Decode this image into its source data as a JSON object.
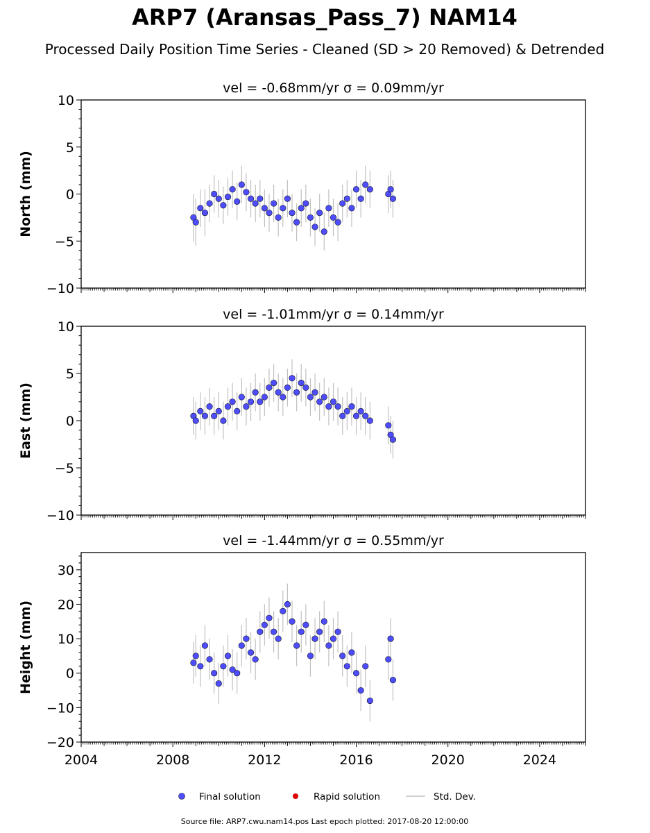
{
  "title": "ARP7 (Aransas_Pass_7) NAM14",
  "subtitle": "Processed Daily Position Time Series - Cleaned (SD > 20 Removed) & Detrended",
  "source_note": "Source file: ARP7.cwu.nam14.pos  Last epoch plotted: 2017-08-20 12:00:00",
  "colors": {
    "final": "#4d4dff",
    "rapid": "#dd0000",
    "stddev": "#c0c0c0",
    "edge": "#1a1a1a"
  },
  "legend": [
    {
      "label": "Final solution",
      "kind": "final"
    },
    {
      "label": "Rapid solution",
      "kind": "rapid"
    },
    {
      "label": "Std. Dev.",
      "kind": "stddev"
    }
  ],
  "chart_data": [
    {
      "type": "scatter",
      "panel_title": "vel = -0.68mm/yr   σ = 0.09mm/yr",
      "ylabel": "North (mm)",
      "ylim": [
        -10,
        10
      ],
      "yticks": [
        -10,
        -5,
        0,
        5,
        10
      ],
      "ytick_labels": [
        "−10",
        "−5",
        "0",
        "5",
        "10"
      ],
      "xlim": [
        2004,
        2026
      ],
      "xticks": [
        2004,
        2008,
        2012,
        2016,
        2020,
        2024
      ],
      "xtick_labels": [
        "2004",
        "2008",
        "2012",
        "2016",
        "2020",
        "2024"
      ],
      "grid": false,
      "series": [
        {
          "name": "Final solution",
          "x": [
            2008.9,
            2009.0,
            2009.2,
            2009.4,
            2009.6,
            2009.8,
            2010.0,
            2010.2,
            2010.4,
            2010.6,
            2010.8,
            2011.0,
            2011.2,
            2011.4,
            2011.6,
            2011.8,
            2012.0,
            2012.2,
            2012.4,
            2012.6,
            2012.8,
            2013.0,
            2013.2,
            2013.4,
            2013.6,
            2013.8,
            2014.0,
            2014.2,
            2014.4,
            2014.6,
            2014.8,
            2015.0,
            2015.2,
            2015.4,
            2015.6,
            2015.8,
            2016.0,
            2016.2,
            2016.4,
            2016.6,
            2017.4,
            2017.5,
            2017.6
          ],
          "y": [
            -2.5,
            -3.0,
            -1.5,
            -2.0,
            -1.0,
            0.0,
            -0.5,
            -1.2,
            -0.3,
            0.5,
            -0.8,
            1.0,
            0.2,
            -0.5,
            -1.0,
            -0.5,
            -1.5,
            -2.0,
            -1.0,
            -2.5,
            -1.5,
            -0.5,
            -2.0,
            -3.0,
            -1.5,
            -1.0,
            -2.5,
            -3.5,
            -2.0,
            -4.0,
            -1.5,
            -2.5,
            -3.0,
            -1.0,
            -0.5,
            -1.5,
            0.5,
            -0.5,
            1.0,
            0.5,
            0.0,
            0.5,
            -0.5
          ],
          "yerr": [
            2.5,
            2.5,
            2.0,
            2.5,
            2.0,
            2.0,
            2.0,
            2.0,
            2.0,
            2.0,
            2.0,
            2.0,
            2.0,
            2.0,
            2.0,
            2.0,
            2.0,
            2.0,
            2.0,
            2.0,
            2.0,
            2.0,
            2.0,
            2.0,
            2.0,
            2.0,
            2.0,
            2.0,
            2.0,
            2.0,
            2.0,
            2.0,
            2.0,
            2.0,
            2.0,
            2.0,
            2.0,
            2.0,
            2.0,
            2.0,
            2.0,
            2.0,
            2.0
          ]
        }
      ]
    },
    {
      "type": "scatter",
      "panel_title": "vel = -1.01mm/yr   σ = 0.14mm/yr",
      "ylabel": "East (mm)",
      "ylim": [
        -10,
        10
      ],
      "yticks": [
        -10,
        -5,
        0,
        5,
        10
      ],
      "ytick_labels": [
        "−10",
        "−5",
        "0",
        "5",
        "10"
      ],
      "xlim": [
        2004,
        2026
      ],
      "xticks": [
        2004,
        2008,
        2012,
        2016,
        2020,
        2024
      ],
      "xtick_labels": [
        "2004",
        "2008",
        "2012",
        "2016",
        "2020",
        "2024"
      ],
      "grid": false,
      "series": [
        {
          "name": "Final solution",
          "x": [
            2008.9,
            2009.0,
            2009.2,
            2009.4,
            2009.6,
            2009.8,
            2010.0,
            2010.2,
            2010.4,
            2010.6,
            2010.8,
            2011.0,
            2011.2,
            2011.4,
            2011.6,
            2011.8,
            2012.0,
            2012.2,
            2012.4,
            2012.6,
            2012.8,
            2013.0,
            2013.2,
            2013.4,
            2013.6,
            2013.8,
            2014.0,
            2014.2,
            2014.4,
            2014.6,
            2014.8,
            2015.0,
            2015.2,
            2015.4,
            2015.6,
            2015.8,
            2016.0,
            2016.2,
            2016.4,
            2016.6,
            2017.4,
            2017.5,
            2017.6
          ],
          "y": [
            0.5,
            0.0,
            1.0,
            0.5,
            1.5,
            0.5,
            1.0,
            0.0,
            1.5,
            2.0,
            1.0,
            2.5,
            1.5,
            2.0,
            3.0,
            2.0,
            2.5,
            3.5,
            4.0,
            3.0,
            2.5,
            3.5,
            4.5,
            3.0,
            4.0,
            3.5,
            2.5,
            3.0,
            2.0,
            2.5,
            1.5,
            2.0,
            1.5,
            0.5,
            1.0,
            1.5,
            0.5,
            1.0,
            0.5,
            0.0,
            -0.5,
            -1.5,
            -2.0
          ],
          "yerr": [
            2.0,
            2.0,
            2.0,
            2.0,
            2.0,
            2.0,
            2.0,
            2.0,
            2.0,
            2.0,
            2.0,
            2.0,
            2.0,
            2.0,
            2.0,
            2.0,
            2.0,
            2.0,
            2.0,
            2.0,
            2.0,
            2.0,
            2.0,
            2.0,
            2.0,
            2.0,
            2.0,
            2.0,
            2.0,
            2.0,
            2.0,
            2.0,
            2.0,
            2.0,
            2.0,
            2.0,
            2.0,
            2.0,
            2.0,
            2.0,
            2.0,
            2.0,
            2.0
          ]
        }
      ]
    },
    {
      "type": "scatter",
      "panel_title": "vel = -1.44mm/yr   σ = 0.55mm/yr",
      "ylabel": "Height (mm)",
      "ylim": [
        -20,
        35
      ],
      "yticks": [
        -20,
        -10,
        0,
        10,
        20,
        30
      ],
      "ytick_labels": [
        "−20",
        "−10",
        "0",
        "10",
        "20",
        "30"
      ],
      "xlim": [
        2004,
        2026
      ],
      "xticks": [
        2004,
        2008,
        2012,
        2016,
        2020,
        2024
      ],
      "xtick_labels": [
        "2004",
        "2008",
        "2012",
        "2016",
        "2020",
        "2024"
      ],
      "grid": false,
      "series": [
        {
          "name": "Final solution",
          "x": [
            2008.9,
            2009.0,
            2009.2,
            2009.4,
            2009.6,
            2009.8,
            2010.0,
            2010.2,
            2010.4,
            2010.6,
            2010.8,
            2011.0,
            2011.2,
            2011.4,
            2011.6,
            2011.8,
            2012.0,
            2012.2,
            2012.4,
            2012.6,
            2012.8,
            2013.0,
            2013.2,
            2013.4,
            2013.6,
            2013.8,
            2014.0,
            2014.2,
            2014.4,
            2014.6,
            2014.8,
            2015.0,
            2015.2,
            2015.4,
            2015.6,
            2015.8,
            2016.0,
            2016.2,
            2016.4,
            2016.6,
            2017.4,
            2017.5,
            2017.6
          ],
          "y": [
            3,
            5,
            2,
            8,
            4,
            0,
            -3,
            2,
            5,
            1,
            0,
            8,
            10,
            6,
            4,
            12,
            14,
            16,
            12,
            10,
            18,
            20,
            15,
            8,
            12,
            14,
            5,
            10,
            12,
            15,
            8,
            10,
            12,
            5,
            2,
            6,
            0,
            -5,
            2,
            -8,
            4,
            10,
            -2
          ],
          "yerr": [
            6,
            6,
            6,
            6,
            6,
            6,
            6,
            6,
            6,
            6,
            6,
            6,
            6,
            6,
            6,
            6,
            6,
            6,
            6,
            6,
            6,
            6,
            6,
            6,
            6,
            6,
            6,
            6,
            6,
            6,
            6,
            6,
            6,
            6,
            6,
            6,
            6,
            6,
            6,
            6,
            6,
            6,
            6
          ]
        }
      ]
    }
  ]
}
